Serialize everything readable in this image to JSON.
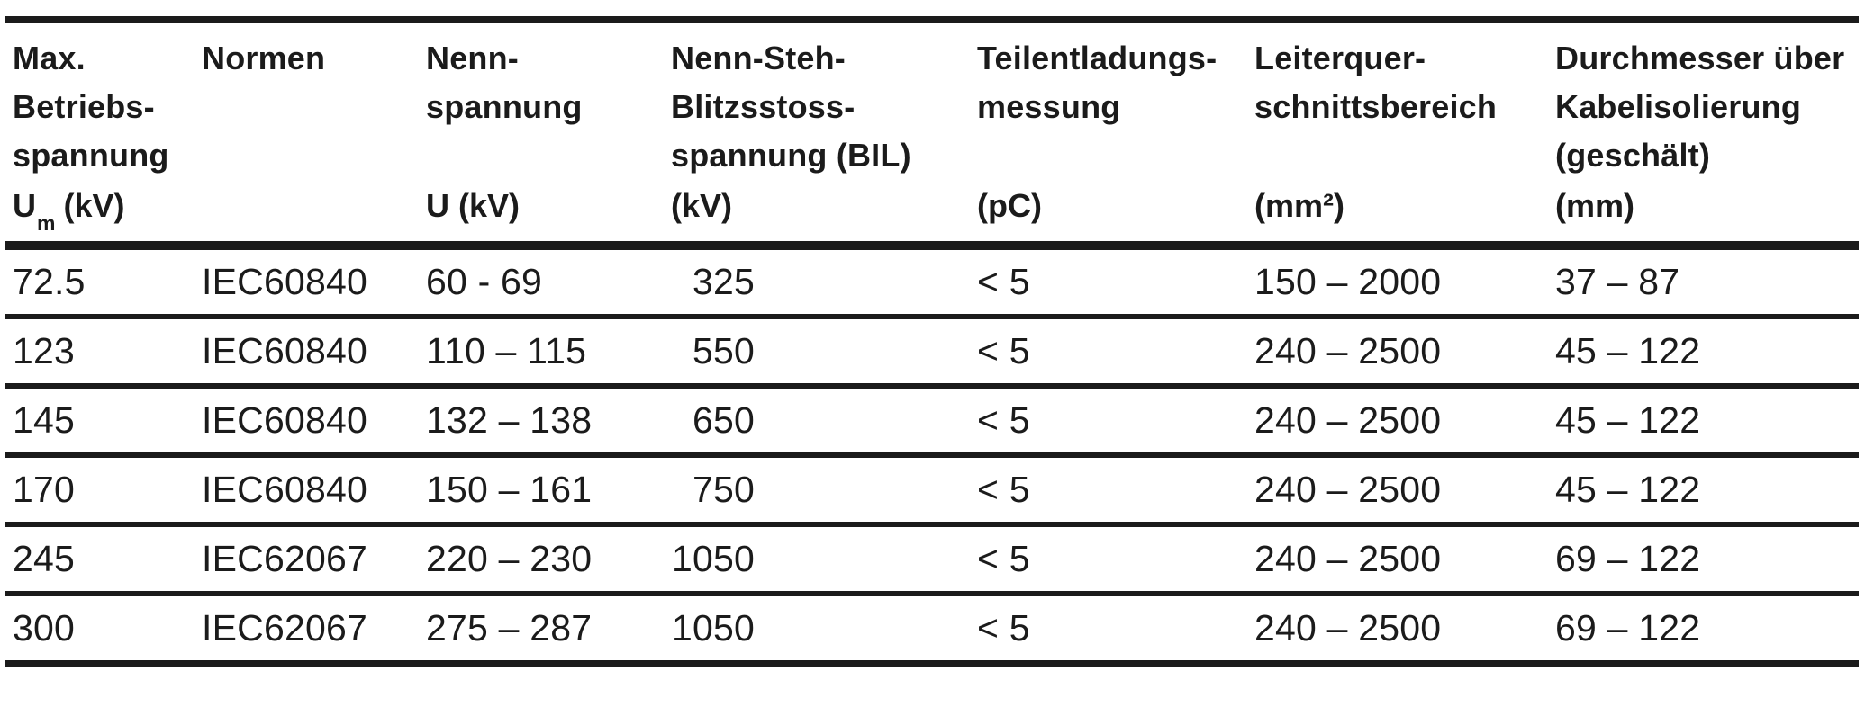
{
  "colors": {
    "text": "#1b1b1b",
    "rule": "#1b1b1b",
    "background": "#ffffff"
  },
  "table": {
    "columns": [
      {
        "name": "Max.\nBetriebs-\nspannung",
        "unit_prefix": "U",
        "unit_sub": "m",
        "unit_suffix": " (kV)"
      },
      {
        "name": "Normen",
        "unit": ""
      },
      {
        "name": "Nenn-\nspannung",
        "unit": "U (kV)"
      },
      {
        "name": "Nenn-Steh-\nBlitzsstoss-\nspannung (BIL)",
        "unit": "(kV)"
      },
      {
        "name": "Teilentladungs-\nmessung",
        "unit": "(pC)"
      },
      {
        "name": "Leiterquer-\nschnittsbereich",
        "unit": "(mm²)"
      },
      {
        "name": "Durchmesser über\nKabelisolierung\n(geschält)",
        "unit": "(mm)"
      }
    ],
    "rows": [
      [
        "72.5",
        "IEC60840",
        "60 - 69",
        "325",
        "< 5",
        "150 – 2000",
        "37 – 87"
      ],
      [
        "123",
        "IEC60840",
        "110 – 115",
        "550",
        "< 5",
        "240 – 2500",
        "45 – 122"
      ],
      [
        "145",
        "IEC60840",
        "132 – 138",
        "650",
        "< 5",
        "240 – 2500",
        "45 – 122"
      ],
      [
        "170",
        "IEC60840",
        "150 – 161",
        "750",
        "< 5",
        "240 – 2500",
        "45 – 122"
      ],
      [
        "245",
        "IEC62067",
        "220 – 230",
        "1050",
        "< 5",
        "240 – 2500",
        "69 – 122"
      ],
      [
        "300",
        "IEC62067",
        "275 – 287",
        "1050",
        "< 5",
        "240 – 2500",
        "69 – 122"
      ]
    ]
  }
}
